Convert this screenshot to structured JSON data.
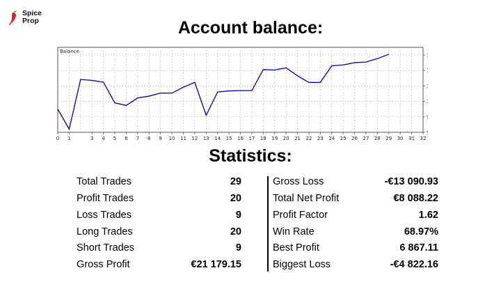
{
  "brand": {
    "logo_text": "Spice\nProp",
    "accent": "#d9232d"
  },
  "headings": {
    "balance": "Account balance:",
    "statistics": "Statistics:"
  },
  "chart_data": {
    "type": "line",
    "title": "Balance",
    "x": [
      0,
      1,
      2,
      3,
      4,
      5,
      6,
      7,
      8,
      9,
      10,
      11,
      12,
      13,
      14,
      15,
      16,
      17,
      18,
      19,
      20,
      21,
      22,
      23,
      24,
      25,
      26,
      27,
      28,
      29
    ],
    "values": [
      100400,
      97650,
      104480,
      104350,
      104100,
      101260,
      100910,
      101940,
      102190,
      102610,
      102600,
      103420,
      104090,
      99560,
      102750,
      102910,
      102950,
      102950,
      105840,
      105790,
      106080,
      104990,
      104070,
      104070,
      106360,
      106480,
      106800,
      106880,
      107350,
      107950
    ],
    "x_ticks": [
      0,
      1,
      3,
      4,
      5,
      6,
      7,
      8,
      9,
      10,
      11,
      12,
      13,
      14,
      15,
      16,
      17,
      18,
      19,
      20,
      21,
      22,
      23,
      24,
      25,
      26,
      27,
      28,
      29,
      30,
      31,
      32
    ],
    "y_ticks": [
      "107848",
      "105721",
      "103595",
      "101469",
      "99342",
      "97216"
    ],
    "y_tick_values": [
      107848,
      105721,
      103595,
      101469,
      99342,
      97216
    ],
    "xlim": [
      0,
      32
    ],
    "ylim": [
      97216,
      108900
    ],
    "grid": true,
    "line_color": "#00009c"
  },
  "stats": {
    "left": [
      {
        "label": "Total Trades",
        "value": "29"
      },
      {
        "label": "Profit Trades",
        "value": "20"
      },
      {
        "label": "Loss Trades",
        "value": "9"
      },
      {
        "label": "Long Trades",
        "value": "20"
      },
      {
        "label": "Short Trades",
        "value": "9"
      },
      {
        "label": "Gross Profit",
        "value": "€21 179.15"
      }
    ],
    "right": [
      {
        "label": "Gross Loss",
        "value": "-€13 090.93"
      },
      {
        "label": "Total Net Profit",
        "value": "€8 088.22"
      },
      {
        "label": "Profit Factor",
        "value": "1.62"
      },
      {
        "label": "Win Rate",
        "value": "68.97%"
      },
      {
        "label": "Best Profit",
        "value": "6 867.11"
      },
      {
        "label": "Biggest Loss",
        "value": "-€4 822.16"
      }
    ]
  }
}
